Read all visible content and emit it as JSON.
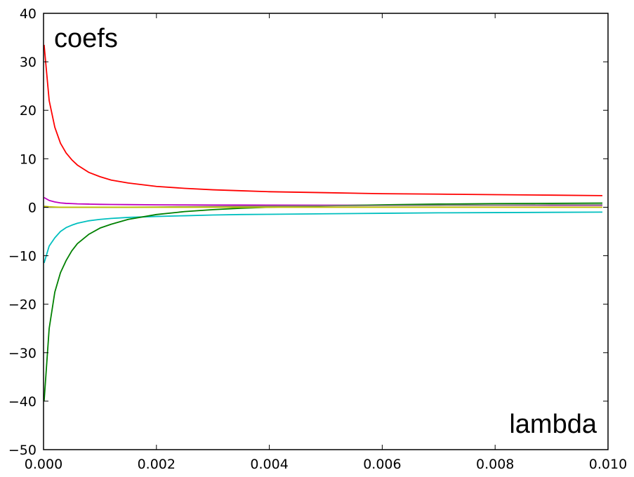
{
  "chart_data": {
    "type": "line",
    "title": "",
    "xlabel": "",
    "ylabel": "",
    "annotations": {
      "top_left": "coefs",
      "bottom_right": "lambda"
    },
    "xlim": [
      0.0,
      0.01
    ],
    "ylim": [
      -50,
      40
    ],
    "grid": false,
    "legend": "none",
    "x_ticks": [
      0.0,
      0.002,
      0.004,
      0.006,
      0.008,
      0.01
    ],
    "x_tick_labels": [
      "0.000",
      "0.002",
      "0.004",
      "0.006",
      "0.008",
      "0.010"
    ],
    "y_ticks": [
      -50,
      -40,
      -30,
      -20,
      -10,
      0,
      10,
      20,
      30,
      40
    ],
    "y_tick_labels": [
      "−50",
      "−40",
      "−30",
      "−20",
      "−10",
      "0",
      "10",
      "20",
      "30",
      "40"
    ],
    "x": [
      1e-05,
      0.0001,
      0.0002,
      0.0003,
      0.0004,
      0.0005,
      0.0006,
      0.0008,
      0.001,
      0.0012,
      0.0015,
      0.002,
      0.0025,
      0.003,
      0.0035,
      0.004,
      0.005,
      0.006,
      0.007,
      0.008,
      0.009,
      0.0099
    ],
    "series": [
      {
        "color": "#ff0000",
        "values": [
          33.5,
          22.0,
          16.5,
          13.2,
          11.2,
          9.8,
          8.7,
          7.2,
          6.3,
          5.6,
          5.0,
          4.3,
          3.9,
          3.6,
          3.4,
          3.2,
          3.0,
          2.8,
          2.7,
          2.6,
          2.5,
          2.4
        ]
      },
      {
        "color": "#bf00bf",
        "values": [
          2.0,
          1.4,
          1.1,
          0.9,
          0.8,
          0.75,
          0.7,
          0.65,
          0.6,
          0.57,
          0.54,
          0.5,
          0.48,
          0.46,
          0.45,
          0.44,
          0.43,
          0.42,
          0.41,
          0.41,
          0.4,
          0.4
        ]
      },
      {
        "color": "#00bfbf",
        "values": [
          -11.5,
          -8.0,
          -6.3,
          -5.0,
          -4.2,
          -3.7,
          -3.3,
          -2.8,
          -2.5,
          -2.3,
          -2.1,
          -1.9,
          -1.75,
          -1.6,
          -1.5,
          -1.45,
          -1.35,
          -1.25,
          -1.15,
          -1.1,
          -1.05,
          -1.0
        ]
      },
      {
        "color": "#008000",
        "values": [
          -40.0,
          -25.0,
          -17.5,
          -13.5,
          -11.0,
          -9.0,
          -7.5,
          -5.6,
          -4.3,
          -3.5,
          -2.5,
          -1.5,
          -0.9,
          -0.5,
          -0.2,
          0.0,
          0.3,
          0.5,
          0.65,
          0.75,
          0.8,
          0.85
        ]
      },
      {
        "color": "#808080",
        "values": [
          0.0,
          0.0,
          0.0,
          0.0,
          0.0,
          0.0,
          0.0,
          0.0,
          0.0,
          0.0,
          0.0,
          0.05,
          0.1,
          0.15,
          0.2,
          0.25,
          0.3,
          0.35,
          0.4,
          0.45,
          0.5,
          0.5
        ]
      },
      {
        "color": "#bfbf00",
        "values": [
          0.2,
          0.1,
          0.05,
          0.0,
          0.0,
          0.0,
          0.0,
          0.0,
          0.0,
          0.0,
          0.0,
          0.0,
          0.0,
          0.0,
          0.0,
          0.0,
          0.0,
          0.0,
          0.0,
          0.0,
          0.0,
          0.0
        ]
      }
    ]
  }
}
